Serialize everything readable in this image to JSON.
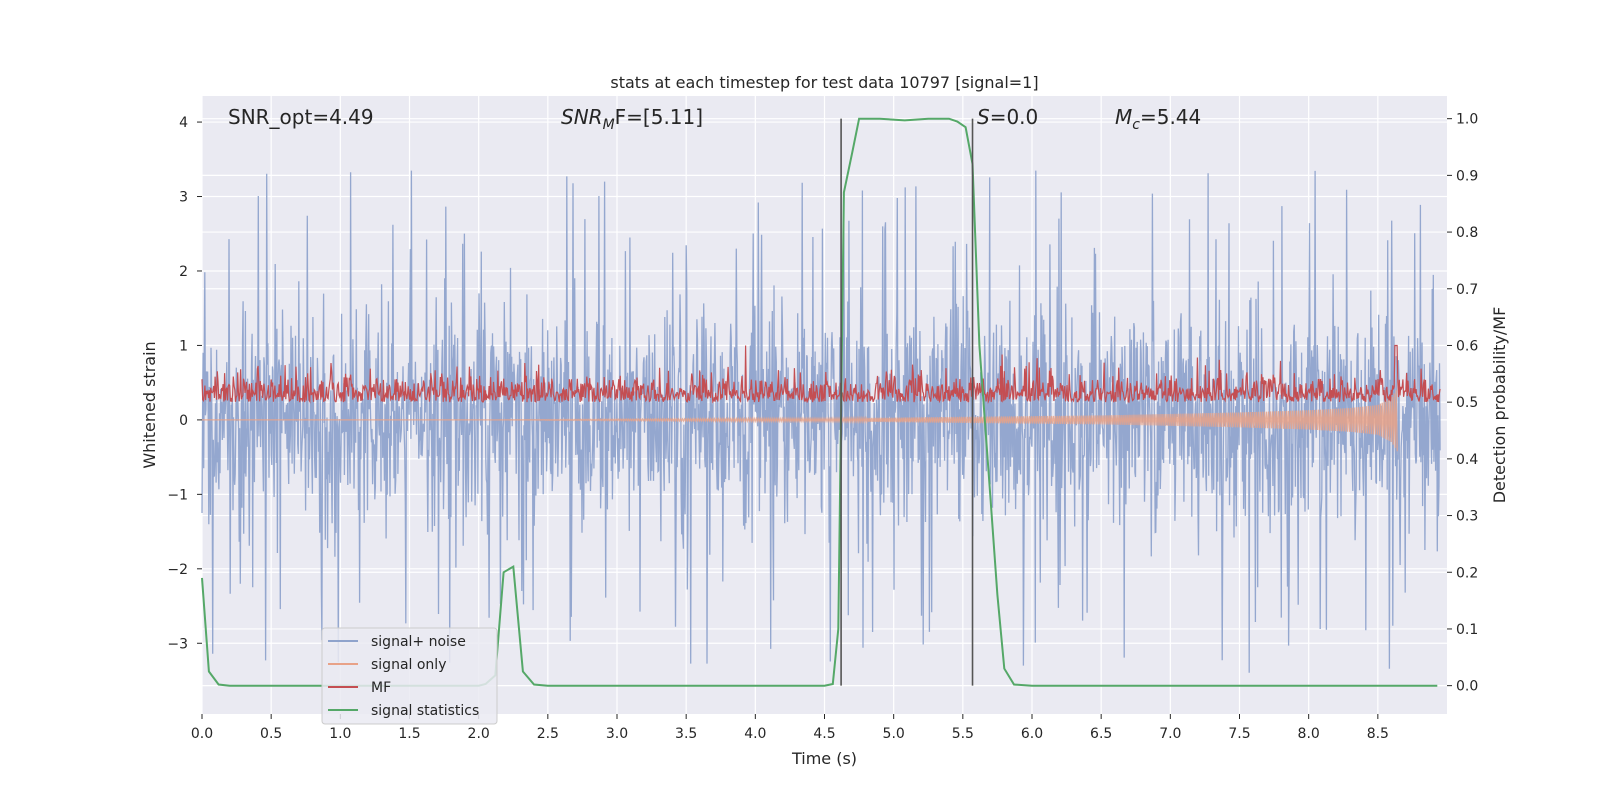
{
  "chart_data": {
    "type": "line",
    "title": "stats at each timestep for test data 10797 [signal=1]",
    "xlabel": "Time (s)",
    "ylabel": "Whitened strain",
    "y2label": "Detection probability/MF",
    "xlim": [
      0.0,
      9.0
    ],
    "ylim": [
      -3.95,
      4.35
    ],
    "y2lim": [
      -0.05,
      1.04
    ],
    "x_ticks": [
      "0.0",
      "0.5",
      "1.0",
      "1.5",
      "2.0",
      "2.5",
      "3.0",
      "3.5",
      "4.0",
      "4.5",
      "5.0",
      "5.5",
      "6.0",
      "6.5",
      "7.0",
      "7.5",
      "8.0",
      "8.5"
    ],
    "y_ticks": [
      "4",
      "3",
      "2",
      "1",
      "0",
      "−1",
      "−2",
      "−3"
    ],
    "y2_ticks": [
      "1.0",
      "0.9",
      "0.8",
      "0.7",
      "0.6",
      "0.5",
      "0.4",
      "0.3",
      "0.2",
      "0.1",
      "0.0"
    ],
    "grid": true,
    "legend_position": "lower-left",
    "annotations": {
      "snr_opt": "SNR_opt=4.49",
      "snr_mf_base": "SNR",
      "snr_mf_sub": "M",
      "snr_mf_rest": "F=[5.11]",
      "s_label": "S",
      "s_value": "=0.0",
      "mc_base": "M",
      "mc_sub": "c",
      "mc_value": "=5.44"
    },
    "vlines": [
      4.62,
      5.57
    ],
    "series": [
      {
        "name": "signal+ noise",
        "axis": "left",
        "color": "#8fa3cc",
        "description": "dense whitened noise, envelope roughly ±2.3, peaks near 3.5"
      },
      {
        "name": "signal only",
        "axis": "left",
        "color": "#e8a288",
        "x": [
          0.0,
          1.0,
          2.0,
          3.0,
          4.0,
          4.5,
          5.0,
          5.5,
          6.0,
          6.5,
          7.0,
          7.5,
          8.0,
          8.3,
          8.5,
          8.6,
          8.64
        ],
        "amplitude": [
          0.0,
          0.0,
          0.0,
          0.01,
          0.02,
          0.02,
          0.03,
          0.04,
          0.05,
          0.06,
          0.08,
          0.1,
          0.13,
          0.16,
          0.2,
          0.3,
          0.42
        ]
      },
      {
        "name": "MF",
        "axis": "right",
        "color": "#c44e52",
        "description": "matched filter output around 0.53 with spikes, peak 0.6 at 8.6 s"
      },
      {
        "name": "signal statistics",
        "axis": "right",
        "color": "#55a868",
        "x": [
          0.0,
          0.05,
          0.12,
          0.2,
          0.5,
          1.0,
          1.5,
          2.0,
          2.05,
          2.12,
          2.18,
          2.25,
          2.32,
          2.4,
          2.5,
          3.0,
          3.5,
          4.0,
          4.5,
          4.56,
          4.6,
          4.64,
          4.7,
          4.75,
          4.9,
          5.08,
          5.25,
          5.4,
          5.46,
          5.52,
          5.57,
          5.62,
          5.7,
          5.75,
          5.8,
          5.87,
          6.0,
          6.5,
          7.0,
          7.5,
          8.0,
          8.5,
          8.93
        ],
        "y": [
          0.19,
          0.025,
          0.002,
          0.0,
          0.0,
          0.0,
          0.0,
          0.0,
          0.003,
          0.018,
          0.2,
          0.21,
          0.025,
          0.002,
          0.0,
          0.0,
          0.0,
          0.0,
          0.0,
          0.003,
          0.1,
          0.87,
          0.94,
          1.0,
          1.0,
          0.997,
          1.0,
          1.0,
          0.995,
          0.985,
          0.92,
          0.6,
          0.33,
          0.16,
          0.03,
          0.002,
          0.0,
          0.0,
          0.0,
          0.0,
          0.0,
          0.0,
          0.0
        ]
      }
    ]
  }
}
